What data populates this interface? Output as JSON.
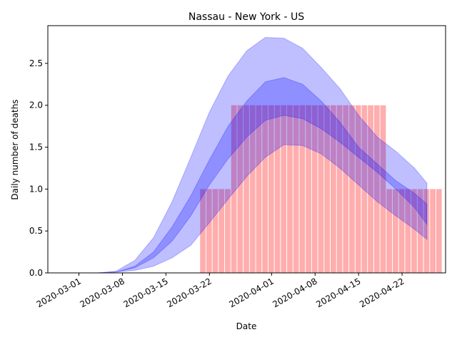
{
  "chart_data": {
    "type": "bar",
    "title": "Nassau - New York - US",
    "xlabel": "Date",
    "ylabel": "Daily number of deaths",
    "ylim": [
      0,
      2.95
    ],
    "xlim": [
      "2020-02-25",
      "2020-04-29"
    ],
    "grid": false,
    "x_ticks": [
      "2020-03-01",
      "2020-03-08",
      "2020-03-15",
      "2020-03-22",
      "2020-04-01",
      "2020-04-08",
      "2020-04-15",
      "2020-04-22"
    ],
    "y_ticks": [
      0.0,
      0.5,
      1.0,
      1.5,
      2.0,
      2.5
    ],
    "bar_color": "#ff9999",
    "band_color": "#0000ff",
    "series": [
      {
        "type": "bar",
        "start_date": "2020-03-21",
        "values": [
          1,
          1,
          1,
          1,
          1,
          2,
          2,
          2,
          2,
          2,
          2,
          2,
          2,
          2,
          2,
          2,
          2,
          2,
          2,
          2,
          2,
          2,
          2,
          2,
          2,
          2,
          2,
          2,
          2,
          2,
          1,
          1,
          1,
          1,
          1,
          1,
          1,
          1,
          1
        ]
      },
      {
        "type": "band",
        "dates": [
          "2020-02-28",
          "2020-03-01",
          "2020-03-04",
          "2020-03-07",
          "2020-03-10",
          "2020-03-13",
          "2020-03-16",
          "2020-03-19",
          "2020-03-22",
          "2020-03-25",
          "2020-03-28",
          "2020-03-31",
          "2020-04-03",
          "2020-04-06",
          "2020-04-09",
          "2020-04-12",
          "2020-04-15",
          "2020-04-18",
          "2020-04-21",
          "2020-04-24",
          "2020-04-26"
        ],
        "lower": [
          0,
          0,
          0,
          0.01,
          0.03,
          0.08,
          0.18,
          0.33,
          0.6,
          0.88,
          1.15,
          1.38,
          1.53,
          1.52,
          1.42,
          1.25,
          1.05,
          0.85,
          0.68,
          0.52,
          0.4
        ],
        "upper": [
          0,
          0,
          0,
          0.02,
          0.15,
          0.42,
          0.85,
          1.38,
          1.92,
          2.35,
          2.65,
          2.81,
          2.8,
          2.68,
          2.45,
          2.2,
          1.88,
          1.62,
          1.45,
          1.25,
          1.07
        ]
      },
      {
        "type": "band",
        "dates": [
          "2020-02-28",
          "2020-03-01",
          "2020-03-04",
          "2020-03-07",
          "2020-03-10",
          "2020-03-13",
          "2020-03-16",
          "2020-03-19",
          "2020-03-22",
          "2020-03-25",
          "2020-03-28",
          "2020-03-31",
          "2020-04-03",
          "2020-04-06",
          "2020-04-09",
          "2020-04-12",
          "2020-04-15",
          "2020-04-18",
          "2020-04-21",
          "2020-04-24",
          "2020-04-26"
        ],
        "lower": [
          0,
          0,
          0,
          0.01,
          0.06,
          0.18,
          0.38,
          0.68,
          1.05,
          1.36,
          1.62,
          1.82,
          1.88,
          1.84,
          1.72,
          1.56,
          1.38,
          1.2,
          1.0,
          0.78,
          0.58
        ],
        "upper": [
          0,
          0,
          0,
          0.01,
          0.08,
          0.25,
          0.55,
          0.92,
          1.35,
          1.75,
          2.05,
          2.28,
          2.33,
          2.25,
          2.05,
          1.8,
          1.5,
          1.3,
          1.1,
          0.95,
          0.82
        ]
      }
    ]
  }
}
